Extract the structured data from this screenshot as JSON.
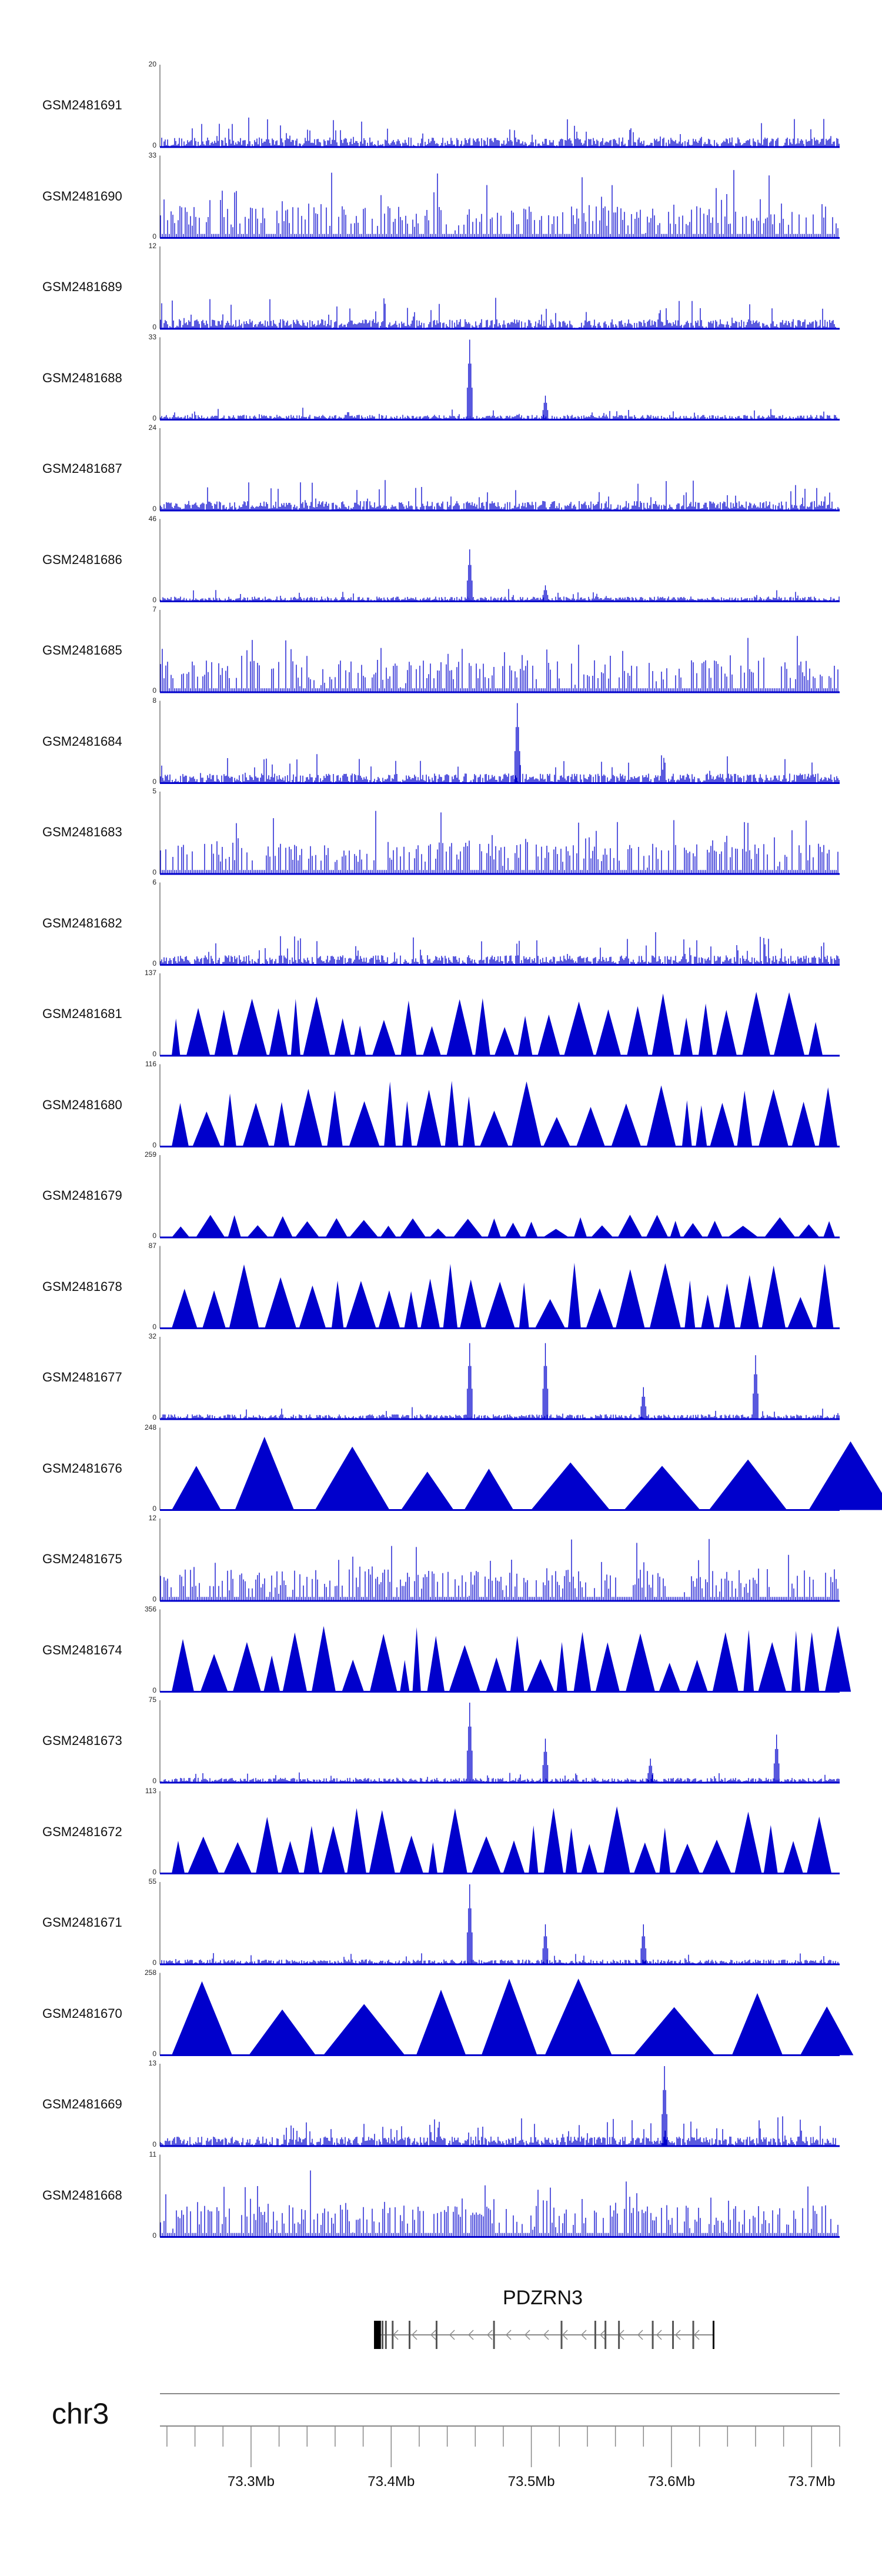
{
  "chart_data": {
    "type": "area",
    "title": "",
    "series_color": "#0000cc",
    "region": {
      "chrom": "chr3",
      "start": 73235000,
      "end": 73720000
    },
    "tracks": [
      {
        "name": "GSM2481691",
        "max": 20,
        "style": "dense"
      },
      {
        "name": "GSM2481690",
        "max": 33,
        "style": "sparse-lines"
      },
      {
        "name": "GSM2481689",
        "max": 12,
        "style": "dense"
      },
      {
        "name": "GSM2481688",
        "max": 33,
        "style": "peaky",
        "peaks": [
          {
            "pos": 73456000,
            "frac": 1.0
          },
          {
            "pos": 73510000,
            "frac": 0.3
          }
        ]
      },
      {
        "name": "GSM2481687",
        "max": 24,
        "style": "dense"
      },
      {
        "name": "GSM2481686",
        "max": 46,
        "style": "peaky",
        "peaks": [
          {
            "pos": 73456000,
            "frac": 0.65
          },
          {
            "pos": 73510000,
            "frac": 0.2
          }
        ]
      },
      {
        "name": "GSM2481685",
        "max": 7,
        "style": "sparse-lines"
      },
      {
        "name": "GSM2481684",
        "max": 8,
        "style": "dense",
        "peaks": [
          {
            "pos": 73490000,
            "frac": 1.0
          }
        ]
      },
      {
        "name": "GSM2481683",
        "max": 5,
        "style": "sparse-lines"
      },
      {
        "name": "GSM2481682",
        "max": 6,
        "style": "dense"
      },
      {
        "name": "GSM2481681",
        "max": 137,
        "style": "triangles"
      },
      {
        "name": "GSM2481680",
        "max": 116,
        "style": "triangles"
      },
      {
        "name": "GSM2481679",
        "max": 259,
        "style": "triangles-low"
      },
      {
        "name": "GSM2481678",
        "max": 87,
        "style": "triangles"
      },
      {
        "name": "GSM2481677",
        "max": 32,
        "style": "peaky",
        "peaks": [
          {
            "pos": 73456000,
            "frac": 0.95
          },
          {
            "pos": 73510000,
            "frac": 0.95
          },
          {
            "pos": 73660000,
            "frac": 0.8
          },
          {
            "pos": 73580000,
            "frac": 0.4
          }
        ]
      },
      {
        "name": "GSM2481676",
        "max": 248,
        "style": "triangles-big"
      },
      {
        "name": "GSM2481675",
        "max": 12,
        "style": "sparse-lines"
      },
      {
        "name": "GSM2481674",
        "max": 356,
        "style": "triangles"
      },
      {
        "name": "GSM2481673",
        "max": 75,
        "style": "peaky",
        "peaks": [
          {
            "pos": 73456000,
            "frac": 1.0
          },
          {
            "pos": 73510000,
            "frac": 0.55
          },
          {
            "pos": 73675000,
            "frac": 0.6
          },
          {
            "pos": 73585000,
            "frac": 0.3
          }
        ]
      },
      {
        "name": "GSM2481672",
        "max": 113,
        "style": "triangles"
      },
      {
        "name": "GSM2481671",
        "max": 55,
        "style": "peaky",
        "peaks": [
          {
            "pos": 73456000,
            "frac": 1.0
          },
          {
            "pos": 73510000,
            "frac": 0.5
          },
          {
            "pos": 73580000,
            "frac": 0.5
          }
        ]
      },
      {
        "name": "GSM2481670",
        "max": 258,
        "style": "triangles-big"
      },
      {
        "name": "GSM2481669",
        "max": 13,
        "style": "dense",
        "peaks": [
          {
            "pos": 73595000,
            "frac": 1.0
          }
        ]
      },
      {
        "name": "GSM2481668",
        "max": 11,
        "style": "sparse-lines"
      }
    ],
    "gene": {
      "name": "PDZRN3",
      "start": 73389000,
      "end": 73630000,
      "strand": "-"
    },
    "chrom_label": "chr3",
    "ticks": [
      {
        "pos": 73300000,
        "label": "73.3Mb"
      },
      {
        "pos": 73400000,
        "label": "73.4Mb"
      },
      {
        "pos": 73500000,
        "label": "73.5Mb"
      },
      {
        "pos": 73600000,
        "label": "73.6Mb"
      },
      {
        "pos": 73700000,
        "label": "73.7Mb"
      }
    ],
    "zero_label": "0"
  }
}
